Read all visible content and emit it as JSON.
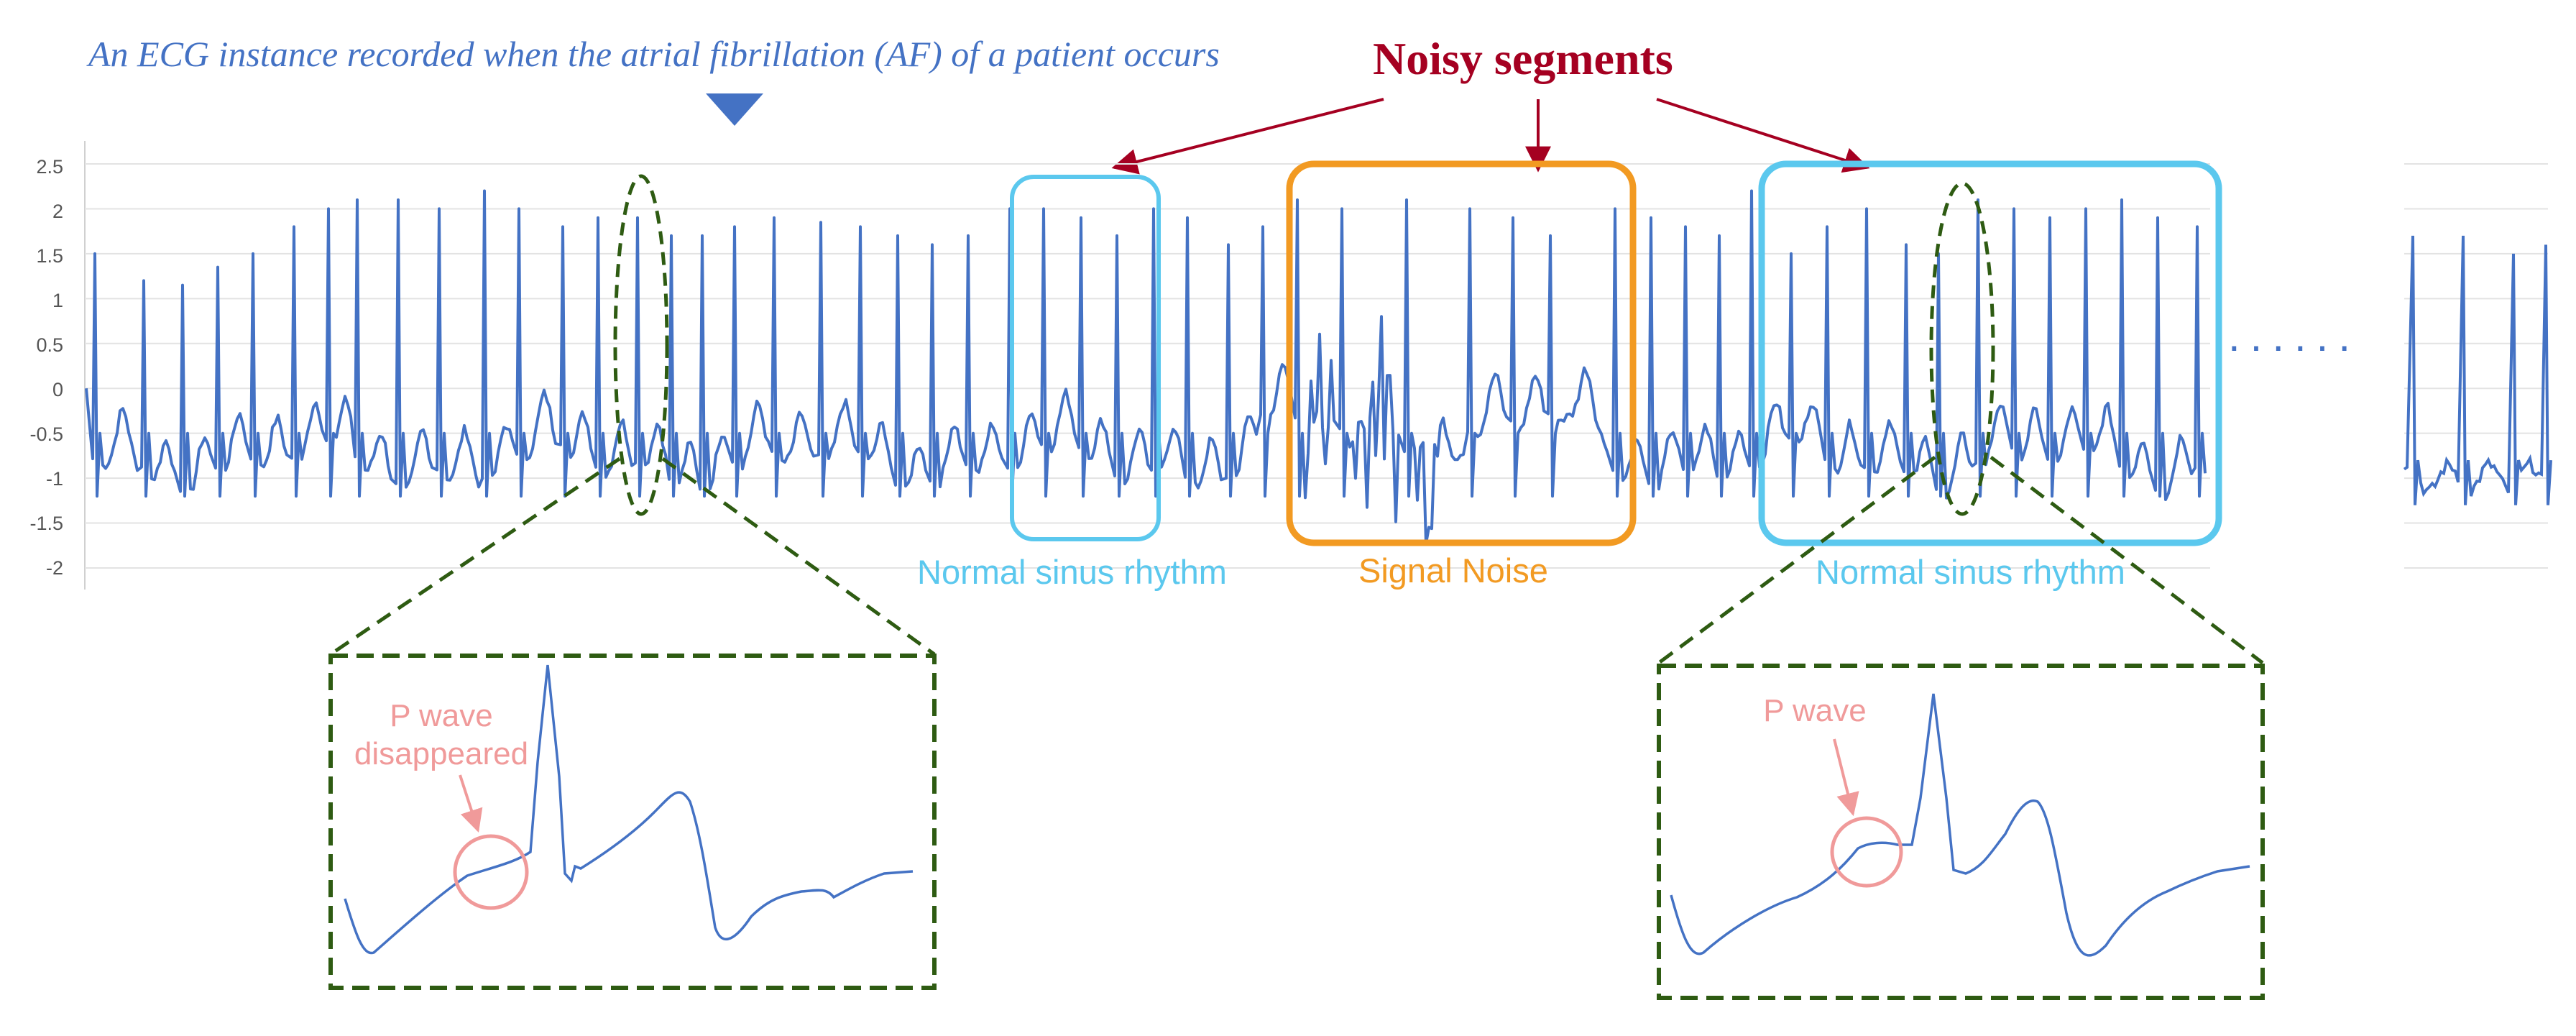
{
  "caption": "An ECG instance recorded when the atrial fibrillation (AF) of a patient occurs",
  "noisy_title": "Noisy segments",
  "y_ticks": [
    "2.5",
    "2",
    "1.5",
    "1",
    "0.5",
    "0",
    "-0.5",
    "-1",
    "-1.5",
    "-2"
  ],
  "segments": {
    "left_label": "Normal sinus rhythm",
    "middle_label": "Signal Noise",
    "right_label": "Normal sinus rhythm"
  },
  "ellipsis": "......",
  "zoom_left": {
    "label_line1": "P wave",
    "label_line2": "disappeared"
  },
  "zoom_right": {
    "label": "P wave"
  },
  "colors": {
    "ecg": "#4472C4",
    "noisy": "#A50021",
    "sinus_box": "#5BC8EE",
    "noise_box": "#F29A22",
    "zoom": "#2E5B12",
    "p_wave": "#F09A9A"
  },
  "chart_data": {
    "type": "line",
    "ylim": [
      -2,
      2.5
    ],
    "y_ticks": [
      2.5,
      2,
      1.5,
      1,
      0.5,
      0,
      -0.5,
      -1,
      -1.5,
      -2
    ],
    "r_peaks": [
      1.5,
      1.2,
      1.15,
      1.35,
      1.5,
      1.8,
      2.0,
      2.1,
      2.1,
      2.0,
      2.2,
      2.0,
      1.8,
      1.9,
      1.9,
      1.7,
      1.7,
      1.8,
      1.9,
      1.85,
      1.8,
      1.7,
      1.6,
      1.7,
      2.0,
      2.0,
      1.9,
      1.7,
      2.0,
      1.9,
      1.6,
      1.8,
      2.1,
      2.0,
      2.1,
      2.0,
      1.9,
      1.7,
      2.0,
      1.9,
      1.8,
      1.7,
      2.2,
      1.5,
      1.8,
      2.0,
      1.6,
      1.5,
      2.1,
      2.0,
      1.9,
      2.0,
      2.1,
      1.9,
      1.8,
      1.9,
      1.8,
      1.8,
      1.8,
      1.6,
      1.7,
      1.7,
      1.5,
      1.6,
      1.6
    ]
  }
}
